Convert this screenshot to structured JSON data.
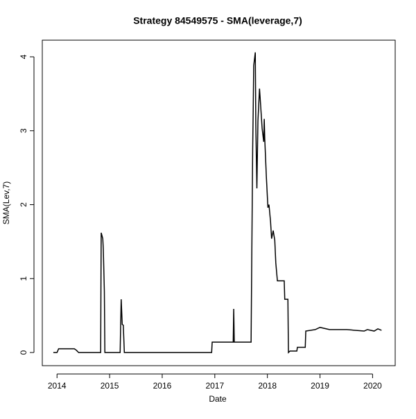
{
  "chart_data": {
    "type": "line",
    "title": "Strategy 84549575 - SMA(leverage,7)",
    "x_label": "Date",
    "y_label": "SMA(Lev,7)",
    "x": [
      2013.93,
      2014.0,
      2014.03,
      2014.33,
      2014.37,
      2014.41,
      2014.83,
      2014.835,
      2014.84,
      2014.87,
      2014.88,
      2014.9,
      2014.91,
      2015.2,
      2015.21,
      2015.22,
      2015.24,
      2015.26,
      2015.28,
      2016.94,
      2016.95,
      2017.35,
      2017.36,
      2017.37,
      2017.69,
      2017.7,
      2017.72,
      2017.73,
      2017.74,
      2017.77,
      2017.78,
      2017.8,
      2017.82,
      2017.85,
      2017.87,
      2017.9,
      2017.93,
      2017.94,
      2017.95,
      2017.98,
      2018.01,
      2018.03,
      2018.06,
      2018.08,
      2018.11,
      2018.14,
      2018.16,
      2018.19,
      2018.32,
      2018.33,
      2018.39,
      2018.4,
      2018.43,
      2018.56,
      2018.57,
      2018.72,
      2018.73,
      2018.91,
      2019.0,
      2019.18,
      2019.51,
      2019.84,
      2019.9,
      2020.03,
      2020.1,
      2020.17
    ],
    "series": [
      {
        "name": "SMA(Lev,7)",
        "color": "#000000",
        "values": [
          0,
          0,
          0.05,
          0.05,
          0.03,
          0,
          0,
          0.88,
          1.62,
          1.54,
          1.4,
          0.83,
          0,
          0,
          0.37,
          0.72,
          0.38,
          0.37,
          0,
          0,
          0.14,
          0.14,
          0.59,
          0.14,
          0.14,
          1.02,
          2.75,
          3.27,
          3.88,
          4.06,
          3.08,
          2.22,
          3.13,
          3.57,
          3.36,
          3.03,
          2.85,
          3.16,
          2.89,
          2.38,
          1.96,
          2.0,
          1.77,
          1.54,
          1.65,
          1.52,
          1.21,
          0.97,
          0.97,
          0.72,
          0.72,
          0,
          0.02,
          0.02,
          0.07,
          0.07,
          0.29,
          0.31,
          0.34,
          0.31,
          0.31,
          0.29,
          0.31,
          0.29,
          0.32,
          0.3
        ]
      }
    ],
    "xlim": [
      2013.72,
      2020.43
    ],
    "ylim": [
      -0.178,
      4.225
    ],
    "xticks": [
      2014,
      2015,
      2016,
      2017,
      2018,
      2019,
      2020
    ],
    "yticks": [
      0,
      1,
      2,
      3,
      4
    ]
  }
}
